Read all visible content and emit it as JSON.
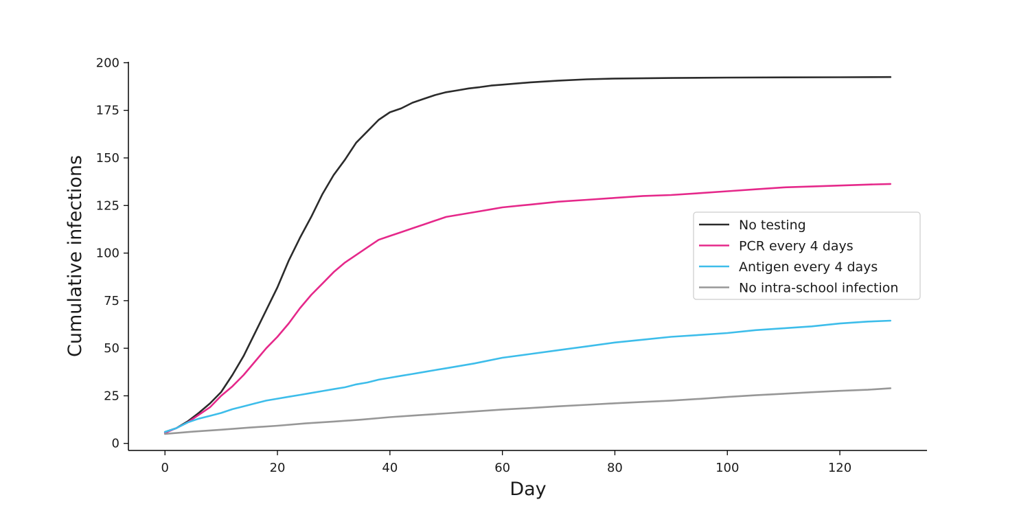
{
  "chart_data": {
    "type": "line",
    "title": "",
    "xlabel": "Day",
    "ylabel": "Cumulative infections",
    "xlim": [
      -6.5,
      135.5
    ],
    "ylim": [
      -3.7,
      200.5
    ],
    "xticks": [
      0,
      20,
      40,
      60,
      80,
      100,
      120
    ],
    "yticks": [
      0,
      25,
      50,
      75,
      100,
      125,
      150,
      175,
      200
    ],
    "grid": false,
    "legend_position": "center-right",
    "series": [
      {
        "name": "No testing",
        "color": "#2b2b2b",
        "points": [
          [
            0,
            6
          ],
          [
            2,
            8
          ],
          [
            4,
            11.5
          ],
          [
            6,
            16
          ],
          [
            8,
            21
          ],
          [
            10,
            27
          ],
          [
            12,
            36
          ],
          [
            14,
            46
          ],
          [
            16,
            58
          ],
          [
            18,
            70
          ],
          [
            20,
            82
          ],
          [
            22,
            96
          ],
          [
            24,
            108
          ],
          [
            26,
            119
          ],
          [
            28,
            131
          ],
          [
            30,
            141
          ],
          [
            32,
            149
          ],
          [
            34,
            158
          ],
          [
            36,
            164
          ],
          [
            38,
            170
          ],
          [
            40,
            174
          ],
          [
            42,
            176
          ],
          [
            44,
            179
          ],
          [
            46,
            181
          ],
          [
            48,
            183
          ],
          [
            50,
            184.5
          ],
          [
            52,
            185.5
          ],
          [
            54,
            186.5
          ],
          [
            56,
            187.2
          ],
          [
            58,
            188
          ],
          [
            60,
            188.5
          ],
          [
            65,
            189.7
          ],
          [
            70,
            190.6
          ],
          [
            75,
            191.3
          ],
          [
            80,
            191.7
          ],
          [
            90,
            192
          ],
          [
            100,
            192.2
          ],
          [
            110,
            192.3
          ],
          [
            120,
            192.4
          ],
          [
            129,
            192.5
          ]
        ]
      },
      {
        "name": "PCR every 4 days",
        "color": "#e5288a",
        "points": [
          [
            0,
            5.5
          ],
          [
            2,
            8
          ],
          [
            4,
            11
          ],
          [
            6,
            15
          ],
          [
            8,
            19
          ],
          [
            10,
            25
          ],
          [
            12,
            30
          ],
          [
            14,
            36
          ],
          [
            16,
            43
          ],
          [
            18,
            50
          ],
          [
            20,
            56
          ],
          [
            22,
            63
          ],
          [
            24,
            71
          ],
          [
            26,
            78
          ],
          [
            28,
            84
          ],
          [
            30,
            90
          ],
          [
            32,
            95
          ],
          [
            34,
            99
          ],
          [
            36,
            103
          ],
          [
            38,
            107
          ],
          [
            40,
            109
          ],
          [
            42,
            111
          ],
          [
            44,
            113
          ],
          [
            46,
            115
          ],
          [
            48,
            117
          ],
          [
            50,
            119
          ],
          [
            52,
            120
          ],
          [
            54,
            121
          ],
          [
            56,
            122
          ],
          [
            58,
            123
          ],
          [
            60,
            124
          ],
          [
            65,
            125.5
          ],
          [
            70,
            127
          ],
          [
            75,
            128
          ],
          [
            80,
            129
          ],
          [
            85,
            130
          ],
          [
            90,
            130.5
          ],
          [
            95,
            131.5
          ],
          [
            100,
            132.5
          ],
          [
            105,
            133.5
          ],
          [
            110,
            134.5
          ],
          [
            115,
            135
          ],
          [
            120,
            135.5
          ],
          [
            125,
            136
          ],
          [
            129,
            136.3
          ]
        ]
      },
      {
        "name": "Antigen every 4 days",
        "color": "#3dbdea",
        "points": [
          [
            0,
            6
          ],
          [
            2,
            8
          ],
          [
            4,
            11
          ],
          [
            6,
            13
          ],
          [
            8,
            14.5
          ],
          [
            10,
            16
          ],
          [
            12,
            18
          ],
          [
            14,
            19.5
          ],
          [
            16,
            21
          ],
          [
            18,
            22.5
          ],
          [
            20,
            23.5
          ],
          [
            22,
            24.5
          ],
          [
            24,
            25.5
          ],
          [
            26,
            26.5
          ],
          [
            28,
            27.5
          ],
          [
            30,
            28.5
          ],
          [
            32,
            29.5
          ],
          [
            34,
            31
          ],
          [
            36,
            32
          ],
          [
            38,
            33.5
          ],
          [
            40,
            34.5
          ],
          [
            42,
            35.5
          ],
          [
            44,
            36.5
          ],
          [
            46,
            37.5
          ],
          [
            48,
            38.5
          ],
          [
            50,
            39.5
          ],
          [
            55,
            42
          ],
          [
            60,
            45
          ],
          [
            65,
            47
          ],
          [
            70,
            49
          ],
          [
            75,
            51
          ],
          [
            80,
            53
          ],
          [
            85,
            54.5
          ],
          [
            90,
            56
          ],
          [
            95,
            57
          ],
          [
            100,
            58
          ],
          [
            105,
            59.5
          ],
          [
            110,
            60.5
          ],
          [
            115,
            61.5
          ],
          [
            120,
            63
          ],
          [
            125,
            64
          ],
          [
            129,
            64.5
          ]
        ]
      },
      {
        "name": "No intra-school infection",
        "color": "#979797",
        "points": [
          [
            0,
            5
          ],
          [
            5,
            6.2
          ],
          [
            10,
            7.2
          ],
          [
            15,
            8.3
          ],
          [
            20,
            9.3
          ],
          [
            25,
            10.5
          ],
          [
            30,
            11.5
          ],
          [
            35,
            12.5
          ],
          [
            40,
            13.8
          ],
          [
            45,
            14.8
          ],
          [
            50,
            15.8
          ],
          [
            55,
            16.8
          ],
          [
            60,
            17.8
          ],
          [
            65,
            18.6
          ],
          [
            70,
            19.5
          ],
          [
            75,
            20.3
          ],
          [
            80,
            21.1
          ],
          [
            85,
            21.8
          ],
          [
            90,
            22.5
          ],
          [
            95,
            23.4
          ],
          [
            100,
            24.4
          ],
          [
            105,
            25.3
          ],
          [
            110,
            26.1
          ],
          [
            115,
            26.9
          ],
          [
            120,
            27.6
          ],
          [
            125,
            28.2
          ],
          [
            129,
            29
          ]
        ]
      }
    ]
  }
}
